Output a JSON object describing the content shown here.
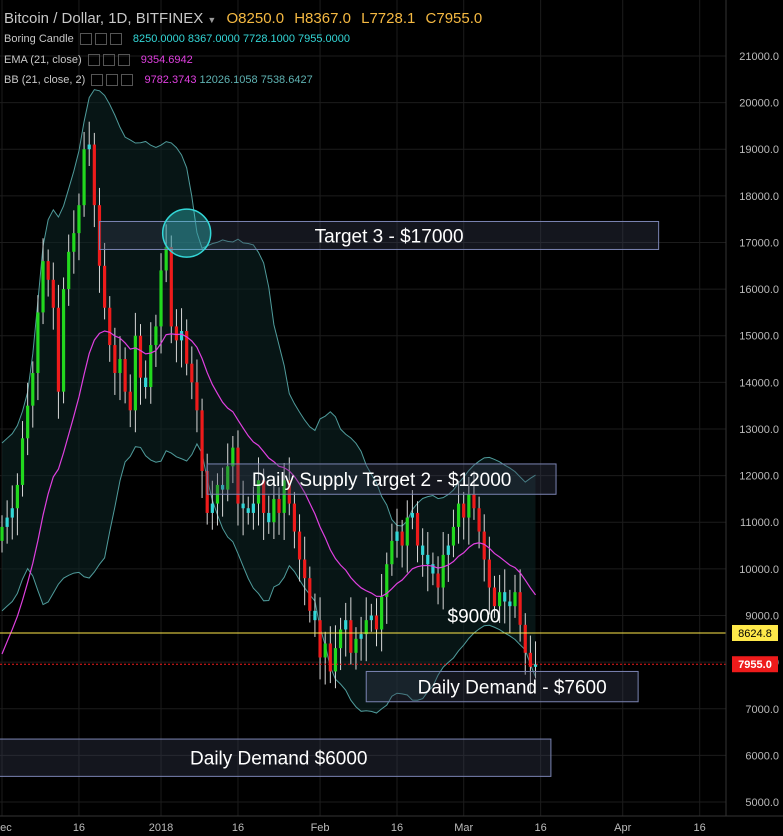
{
  "header": {
    "symbol": "Bitcoin / Dollar, 1D, BITFINEX",
    "open": "O8250.0",
    "high": "H8367.0",
    "low": "L7728.1",
    "close": "C7955.0"
  },
  "indicators": [
    {
      "name": "Boring Candle",
      "values": [
        "8250.0000",
        "8367.0000",
        "7728.1000",
        "7955.0000"
      ],
      "color": "#33d7d7"
    },
    {
      "name": "EMA (21, close)",
      "values": [
        "9354.6942"
      ],
      "color": "#e040e0"
    },
    {
      "name": "BB (21, close, 2)",
      "values": [
        "9782.3743",
        "12026.1058",
        "7538.6427"
      ],
      "color": "#e040e0"
    }
  ],
  "price_tags": {
    "line": "8624.8",
    "last": "7955.0"
  },
  "chart_data": {
    "type": "candlestick",
    "title": "Bitcoin / Dollar, 1D, BITFINEX",
    "ylim": [
      4700,
      22200
    ],
    "yticks": [
      5000,
      6000,
      7000,
      8000,
      9000,
      10000,
      11000,
      12000,
      13000,
      14000,
      15000,
      16000,
      17000,
      18000,
      19000,
      20000,
      21000
    ],
    "xticks": [
      {
        "label": "Dec",
        "day": 0
      },
      {
        "label": "16",
        "day": 15
      },
      {
        "label": "2018",
        "day": 31
      },
      {
        "label": "16",
        "day": 46
      },
      {
        "label": "Feb",
        "day": 62
      },
      {
        "label": "16",
        "day": 77
      },
      {
        "label": "Mar",
        "day": 90
      },
      {
        "label": "16",
        "day": 105
      },
      {
        "label": "Apr",
        "day": 121
      },
      {
        "label": "16",
        "day": 136
      }
    ],
    "close_series": [
      10900,
      11100,
      11300,
      11800,
      12800,
      13500,
      14200,
      15500,
      16600,
      16200,
      15600,
      13800,
      16000,
      16800,
      17200,
      17800,
      19000,
      19100,
      17800,
      16500,
      15600,
      14800,
      14200,
      14500,
      13800,
      13400,
      15000,
      14100,
      13900,
      14800,
      15200,
      16400,
      16900,
      15200,
      14900,
      15100,
      14400,
      14000,
      13400,
      12100,
      11200,
      11400,
      11800,
      11700,
      12200,
      12600,
      11400,
      11300,
      11200,
      11400,
      11900,
      11200,
      11000,
      11500,
      11200,
      11900,
      11400,
      10800,
      10200,
      9800,
      9100,
      8900,
      8100,
      8400,
      7800,
      8300,
      8700,
      8900,
      8200,
      8500,
      8600,
      8900,
      9000,
      8700,
      9400,
      10100,
      10600,
      10800,
      10500,
      11100,
      11200,
      10500,
      10300,
      10100,
      9900,
      9600,
      10300,
      10500,
      10900,
      11400,
      11100,
      11600,
      11300,
      10800,
      10200,
      9600,
      9200,
      9500,
      9300,
      9200,
      9500,
      8800,
      8200,
      7900,
      7955
    ],
    "ema21": {
      "name": "EMA (21, close)",
      "last": 9354.6942
    },
    "bollinger": {
      "name": "BB (21, close, 2)",
      "basis": 9782.3743,
      "upper": 12026.1058,
      "lower": 7538.6427
    },
    "horizontal_line": 8624.8,
    "last_price": 7955.0,
    "annotations": [
      {
        "label": "Target 3 - $17000",
        "top": 17450,
        "bottom": 16850,
        "day_from": 19,
        "day_to": 128
      },
      {
        "label": "Daily Supply Target 2 - $12000",
        "top": 12250,
        "bottom": 11600,
        "day_from": 40,
        "day_to": 108
      },
      {
        "label": "Daily Demand - $7600",
        "top": 7800,
        "bottom": 7150,
        "day_from": 71,
        "day_to": 124
      },
      {
        "label": "Daily Demand $6000",
        "top": 6350,
        "bottom": 5550,
        "day_from": -3,
        "day_to": 107
      },
      {
        "label": "$9000",
        "price": 9000,
        "day": 92
      }
    ]
  }
}
